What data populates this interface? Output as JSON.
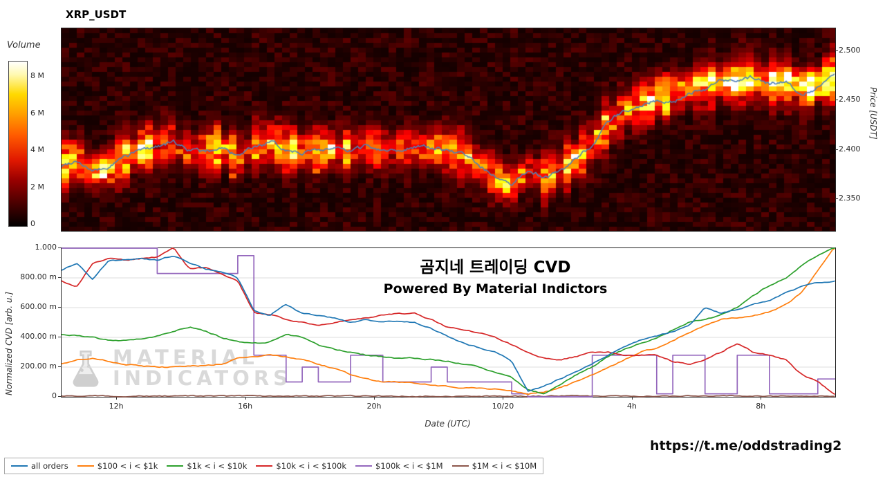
{
  "title": "XRP_USDT",
  "overlay": {
    "title_korean": "곰지네 트레이딩 CVD",
    "subtitle": "Powered By Material Indictors"
  },
  "watermark": {
    "line1": "MATERIAL",
    "line2": "INDICATORS"
  },
  "footer": {
    "link": "https://t.me/oddstrading2"
  },
  "chart_data": [
    {
      "type": "heatmap",
      "title": "XRP_USDT",
      "ylabel": "Price [USDT]",
      "colorbar_label": "Volume",
      "colorbar_ticks": [
        "0",
        "2 M",
        "4 M",
        "6 M",
        "8 M"
      ],
      "colormap": "hot",
      "price_range": [
        2.318,
        2.523
      ],
      "hours_range": [
        10.28,
        34.29
      ],
      "ytick_labels": [
        "2.350",
        "2.400",
        "2.450",
        "2.500"
      ],
      "ytick_values": [
        2.35,
        2.4,
        2.45,
        2.5
      ],
      "volume_band_sigma": 0.012,
      "high_volume_shelf": {
        "price": 2.468,
        "from_hour": 28.6
      },
      "price_line": {
        "name": "price",
        "color": "#4f81b8",
        "x_start": 10.25,
        "x_step": 0.5,
        "values": [
          2.383,
          2.39,
          2.378,
          2.382,
          2.394,
          2.4,
          2.404,
          2.408,
          2.4,
          2.398,
          2.403,
          2.393,
          2.402,
          2.408,
          2.4,
          2.398,
          2.4,
          2.402,
          2.398,
          2.405,
          2.4,
          2.4,
          2.404,
          2.402,
          2.4,
          2.395,
          2.385,
          2.372,
          2.363,
          2.38,
          2.372,
          2.378,
          2.39,
          2.405,
          2.428,
          2.44,
          2.446,
          2.45,
          2.448,
          2.458,
          2.462,
          2.47,
          2.468,
          2.474,
          2.466,
          2.47,
          2.456,
          2.464,
          2.475
        ]
      }
    },
    {
      "type": "line",
      "xlabel": "Date (UTC)",
      "ylabel": "Normalized CVD [arb. u.]",
      "ylim": [
        0,
        1
      ],
      "xlim_hours": [
        10.28,
        34.29
      ],
      "xtick_labels": [
        "12h",
        "16h",
        "20h",
        "10/20",
        "4h",
        "8h"
      ],
      "xtick_hours": [
        12,
        16,
        20,
        24,
        28,
        32
      ],
      "ytick_labels": [
        "0",
        "200.00 m",
        "400.00 m",
        "600.00 m",
        "800.00 m",
        "1.000"
      ],
      "ytick_values": [
        0,
        0.2,
        0.4,
        0.6,
        0.8,
        1.0
      ],
      "grid": "horizontal",
      "x_start": 10.25,
      "x_step": 0.5,
      "series": [
        {
          "name": "all orders",
          "color": "#1f77b4",
          "values": [
            0.85,
            0.9,
            0.79,
            0.92,
            0.92,
            0.93,
            0.92,
            0.95,
            0.9,
            0.86,
            0.84,
            0.8,
            0.58,
            0.55,
            0.62,
            0.56,
            0.55,
            0.53,
            0.5,
            0.52,
            0.5,
            0.51,
            0.5,
            0.46,
            0.41,
            0.36,
            0.33,
            0.3,
            0.24,
            0.04,
            0.07,
            0.12,
            0.17,
            0.22,
            0.28,
            0.34,
            0.38,
            0.41,
            0.44,
            0.48,
            0.6,
            0.56,
            0.59,
            0.62,
            0.65,
            0.7,
            0.74,
            0.77,
            0.78
          ]
        },
        {
          "name": "$100 < i < $1k",
          "color": "#ff7f0e",
          "values": [
            0.22,
            0.25,
            0.26,
            0.24,
            0.22,
            0.21,
            0.2,
            0.2,
            0.21,
            0.21,
            0.22,
            0.26,
            0.27,
            0.28,
            0.27,
            0.25,
            0.22,
            0.19,
            0.15,
            0.12,
            0.1,
            0.1,
            0.09,
            0.08,
            0.07,
            0.06,
            0.06,
            0.05,
            0.04,
            0.02,
            0.03,
            0.06,
            0.1,
            0.15,
            0.2,
            0.25,
            0.3,
            0.33,
            0.38,
            0.43,
            0.48,
            0.52,
            0.53,
            0.55,
            0.57,
            0.62,
            0.7,
            0.85,
            1.0
          ]
        },
        {
          "name": "$1k < i < $10k",
          "color": "#2ca02c",
          "values": [
            0.42,
            0.41,
            0.4,
            0.38,
            0.38,
            0.39,
            0.41,
            0.44,
            0.47,
            0.44,
            0.4,
            0.37,
            0.36,
            0.37,
            0.42,
            0.4,
            0.35,
            0.32,
            0.3,
            0.28,
            0.27,
            0.26,
            0.26,
            0.25,
            0.24,
            0.22,
            0.2,
            0.16,
            0.13,
            0.05,
            0.02,
            0.08,
            0.15,
            0.2,
            0.27,
            0.32,
            0.36,
            0.4,
            0.45,
            0.5,
            0.52,
            0.55,
            0.6,
            0.68,
            0.75,
            0.8,
            0.88,
            0.95,
            1.0
          ]
        },
        {
          "name": "$10k < i < $100k",
          "color": "#d62728",
          "values": [
            0.78,
            0.74,
            0.9,
            0.93,
            0.92,
            0.93,
            0.94,
            1.0,
            0.86,
            0.87,
            0.82,
            0.78,
            0.57,
            0.55,
            0.52,
            0.5,
            0.48,
            0.5,
            0.52,
            0.53,
            0.55,
            0.56,
            0.56,
            0.52,
            0.47,
            0.45,
            0.43,
            0.4,
            0.35,
            0.3,
            0.26,
            0.25,
            0.27,
            0.3,
            0.3,
            0.28,
            0.28,
            0.28,
            0.24,
            0.22,
            0.25,
            0.3,
            0.36,
            0.3,
            0.28,
            0.25,
            0.15,
            0.1,
            0.02
          ]
        },
        {
          "name": "$100k < i < $1M",
          "color": "#9467bd",
          "step": true,
          "values": [
            1.0,
            1.0,
            1.0,
            1.0,
            1.0,
            1.0,
            0.83,
            0.83,
            0.83,
            0.83,
            0.83,
            0.95,
            0.28,
            0.28,
            0.1,
            0.2,
            0.1,
            0.1,
            0.28,
            0.28,
            0.1,
            0.1,
            0.1,
            0.2,
            0.1,
            0.1,
            0.1,
            0.1,
            0.02,
            0.0,
            0.0,
            0.0,
            0.0,
            0.28,
            0.28,
            0.28,
            0.28,
            0.02,
            0.28,
            0.28,
            0.02,
            0.02,
            0.28,
            0.28,
            0.02,
            0.02,
            0.02,
            0.12,
            0.12
          ]
        },
        {
          "name": "$1M < i < $10M",
          "color": "#8c564b",
          "values": [
            0.005,
            0.005,
            0.005,
            0.005,
            0.005,
            0.005,
            0.005,
            0.005,
            0.005,
            0.005,
            0.005,
            0.005,
            0.005,
            0.005,
            0.005,
            0.005,
            0.005,
            0.005,
            0.005,
            0.005,
            0.005,
            0.005,
            0.005,
            0.005,
            0.005,
            0.005,
            0.005,
            0.005,
            0.005,
            0.005,
            0.005,
            0.005,
            0.005,
            0.005,
            0.005,
            0.005,
            0.005,
            0.005,
            0.005,
            0.005,
            0.005,
            0.005,
            0.005,
            0.005,
            0.005,
            0.005,
            0.005,
            0.005,
            0.005
          ]
        }
      ]
    }
  ]
}
